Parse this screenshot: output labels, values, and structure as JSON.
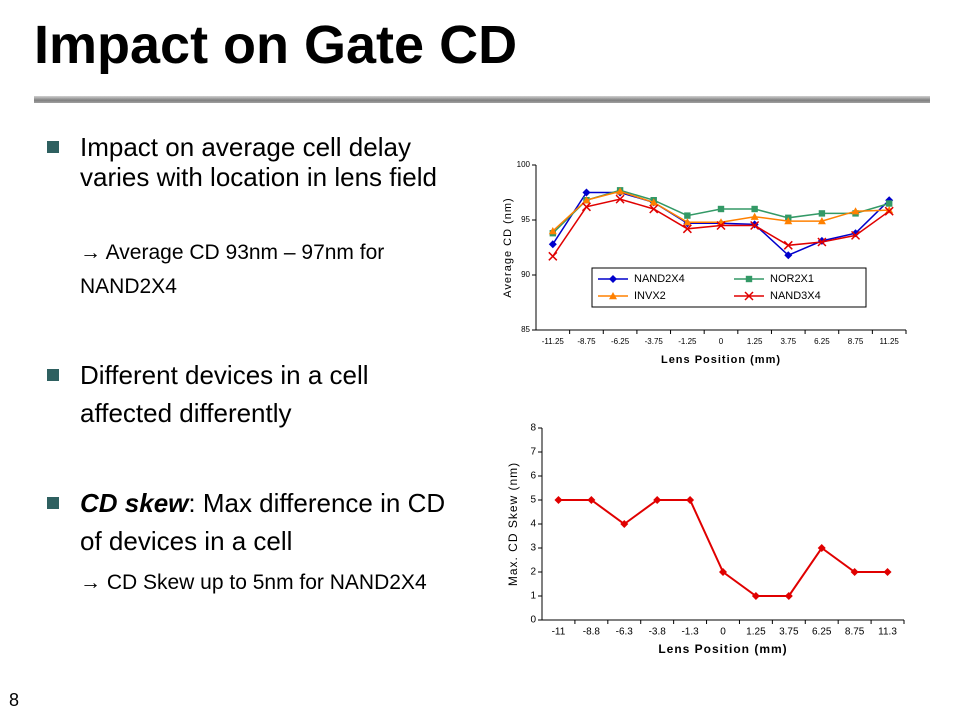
{
  "slide": {
    "title": "Impact on Gate CD",
    "page_number": "8",
    "bullets": [
      {
        "text": "Impact on average cell delay varies with location in lens field",
        "sub": "→ Average CD 93nm – 97nm for NAND2X4"
      },
      {
        "text": "Different devices in a cell affected differently"
      },
      {
        "lead": "CD skew",
        "text": ": Max difference in CD of devices in a cell",
        "sub": "→ CD Skew up to 5nm for NAND2X4"
      }
    ]
  },
  "chart_data": [
    {
      "type": "line",
      "xlabel": "Lens Position (mm)",
      "ylabel": "Average CD (nm)",
      "categories": [
        "-11.25",
        "-8.75",
        "-6.25",
        "-3.75",
        "-1.25",
        "0",
        "1.25",
        "3.75",
        "6.25",
        "8.75",
        "11.25"
      ],
      "ylim": [
        85,
        100
      ],
      "yticks": [
        85,
        90,
        95,
        100
      ],
      "legend": "inside",
      "series": [
        {
          "name": "NAND2X4",
          "color": "#0000cc",
          "marker": "diamond",
          "values": [
            92.8,
            97.5,
            97.5,
            96.6,
            94.7,
            94.7,
            94.6,
            91.8,
            93.1,
            93.8,
            96.8
          ]
        },
        {
          "name": "NOR2X1",
          "color": "#339966",
          "marker": "square",
          "values": [
            93.8,
            96.8,
            97.7,
            96.8,
            95.4,
            96.0,
            96.0,
            95.2,
            95.6,
            95.6,
            96.5
          ]
        },
        {
          "name": "INVX2",
          "color": "#ff8000",
          "marker": "triangle",
          "values": [
            94.0,
            96.8,
            97.6,
            96.6,
            94.8,
            94.8,
            95.3,
            94.9,
            94.9,
            95.8,
            95.9
          ]
        },
        {
          "name": "NAND3X4",
          "color": "#e00000",
          "marker": "x",
          "values": [
            91.7,
            96.2,
            96.9,
            96.0,
            94.2,
            94.5,
            94.5,
            92.7,
            93.0,
            93.6,
            95.8
          ]
        }
      ]
    },
    {
      "type": "line",
      "xlabel": "Lens Position (mm)",
      "ylabel": "Max. CD Skew (nm)",
      "categories": [
        "-11",
        "-8.8",
        "-6.3",
        "-3.8",
        "-1.3",
        "0",
        "1.25",
        "3.75",
        "6.25",
        "8.75",
        "11.3"
      ],
      "ylim": [
        0,
        8
      ],
      "yticks": [
        0,
        1,
        2,
        3,
        4,
        5,
        6,
        7,
        8
      ],
      "series": [
        {
          "color": "#e00000",
          "marker": "diamond",
          "values": [
            5,
            5,
            4,
            5,
            5,
            2,
            1,
            1,
            3,
            2,
            2
          ]
        }
      ]
    }
  ]
}
